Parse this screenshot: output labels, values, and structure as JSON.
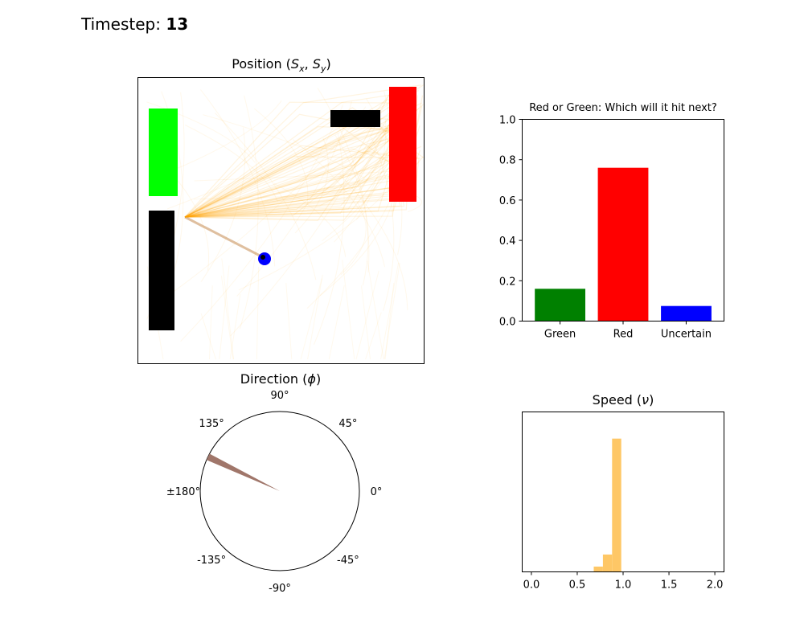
{
  "header": {
    "timestep_label": "Timestep:",
    "timestep_value": "13"
  },
  "position_panel": {
    "title_prefix": "Position (",
    "sx": "S",
    "sx_sub": "x",
    "sep": ",",
    "sy": "S",
    "sy_sub": "y",
    "title_suffix": ")",
    "colors": {
      "green": "#00ff00",
      "red": "#ff0000",
      "wall": "#000000",
      "ball": "#0000ff",
      "trail": "#ffa500"
    }
  },
  "direction_panel": {
    "title_prefix": "Direction (",
    "phi": "ϕ",
    "title_suffix": ")",
    "tick_labels": [
      {
        "text": "90°",
        "deg": 90
      },
      {
        "text": "45°",
        "deg": 45
      },
      {
        "text": "0°",
        "deg": 0
      },
      {
        "text": "-45°",
        "deg": -45
      },
      {
        "text": "-90°",
        "deg": -90
      },
      {
        "text": "-135°",
        "deg": -135
      },
      {
        "text": "±180°",
        "deg": 180
      },
      {
        "text": "135°",
        "deg": 135
      }
    ],
    "wedge_deg": [
      152,
      157
    ],
    "wedge_color": "#a0766a"
  },
  "chart_data": [
    {
      "type": "bar",
      "title": "Red or Green: Which will it hit next?",
      "categories": [
        "Green",
        "Red",
        "Uncertain"
      ],
      "values": [
        0.16,
        0.76,
        0.075
      ],
      "colors": [
        "#008000",
        "#ff0000",
        "#0000ff"
      ],
      "ylim": [
        0,
        1.0
      ],
      "yticks": [
        "0.0",
        "0.2",
        "0.4",
        "0.6",
        "0.8",
        "1.0"
      ],
      "grid": false
    },
    {
      "type": "bar",
      "title_prefix": "Speed (",
      "title_symbol": "ν",
      "title_suffix": ")",
      "xlim": [
        -0.1,
        2.1
      ],
      "xticks": [
        "0.0",
        "0.5",
        "1.0",
        "1.5",
        "2.0"
      ],
      "bins": [
        {
          "x0": 0.68,
          "x1": 0.78,
          "count": 0.04
        },
        {
          "x0": 0.78,
          "x1": 0.88,
          "count": 0.13
        },
        {
          "x0": 0.88,
          "x1": 0.98,
          "count": 1.0
        }
      ],
      "ymax": 1.2,
      "color": "#fec766",
      "grid": false
    }
  ]
}
